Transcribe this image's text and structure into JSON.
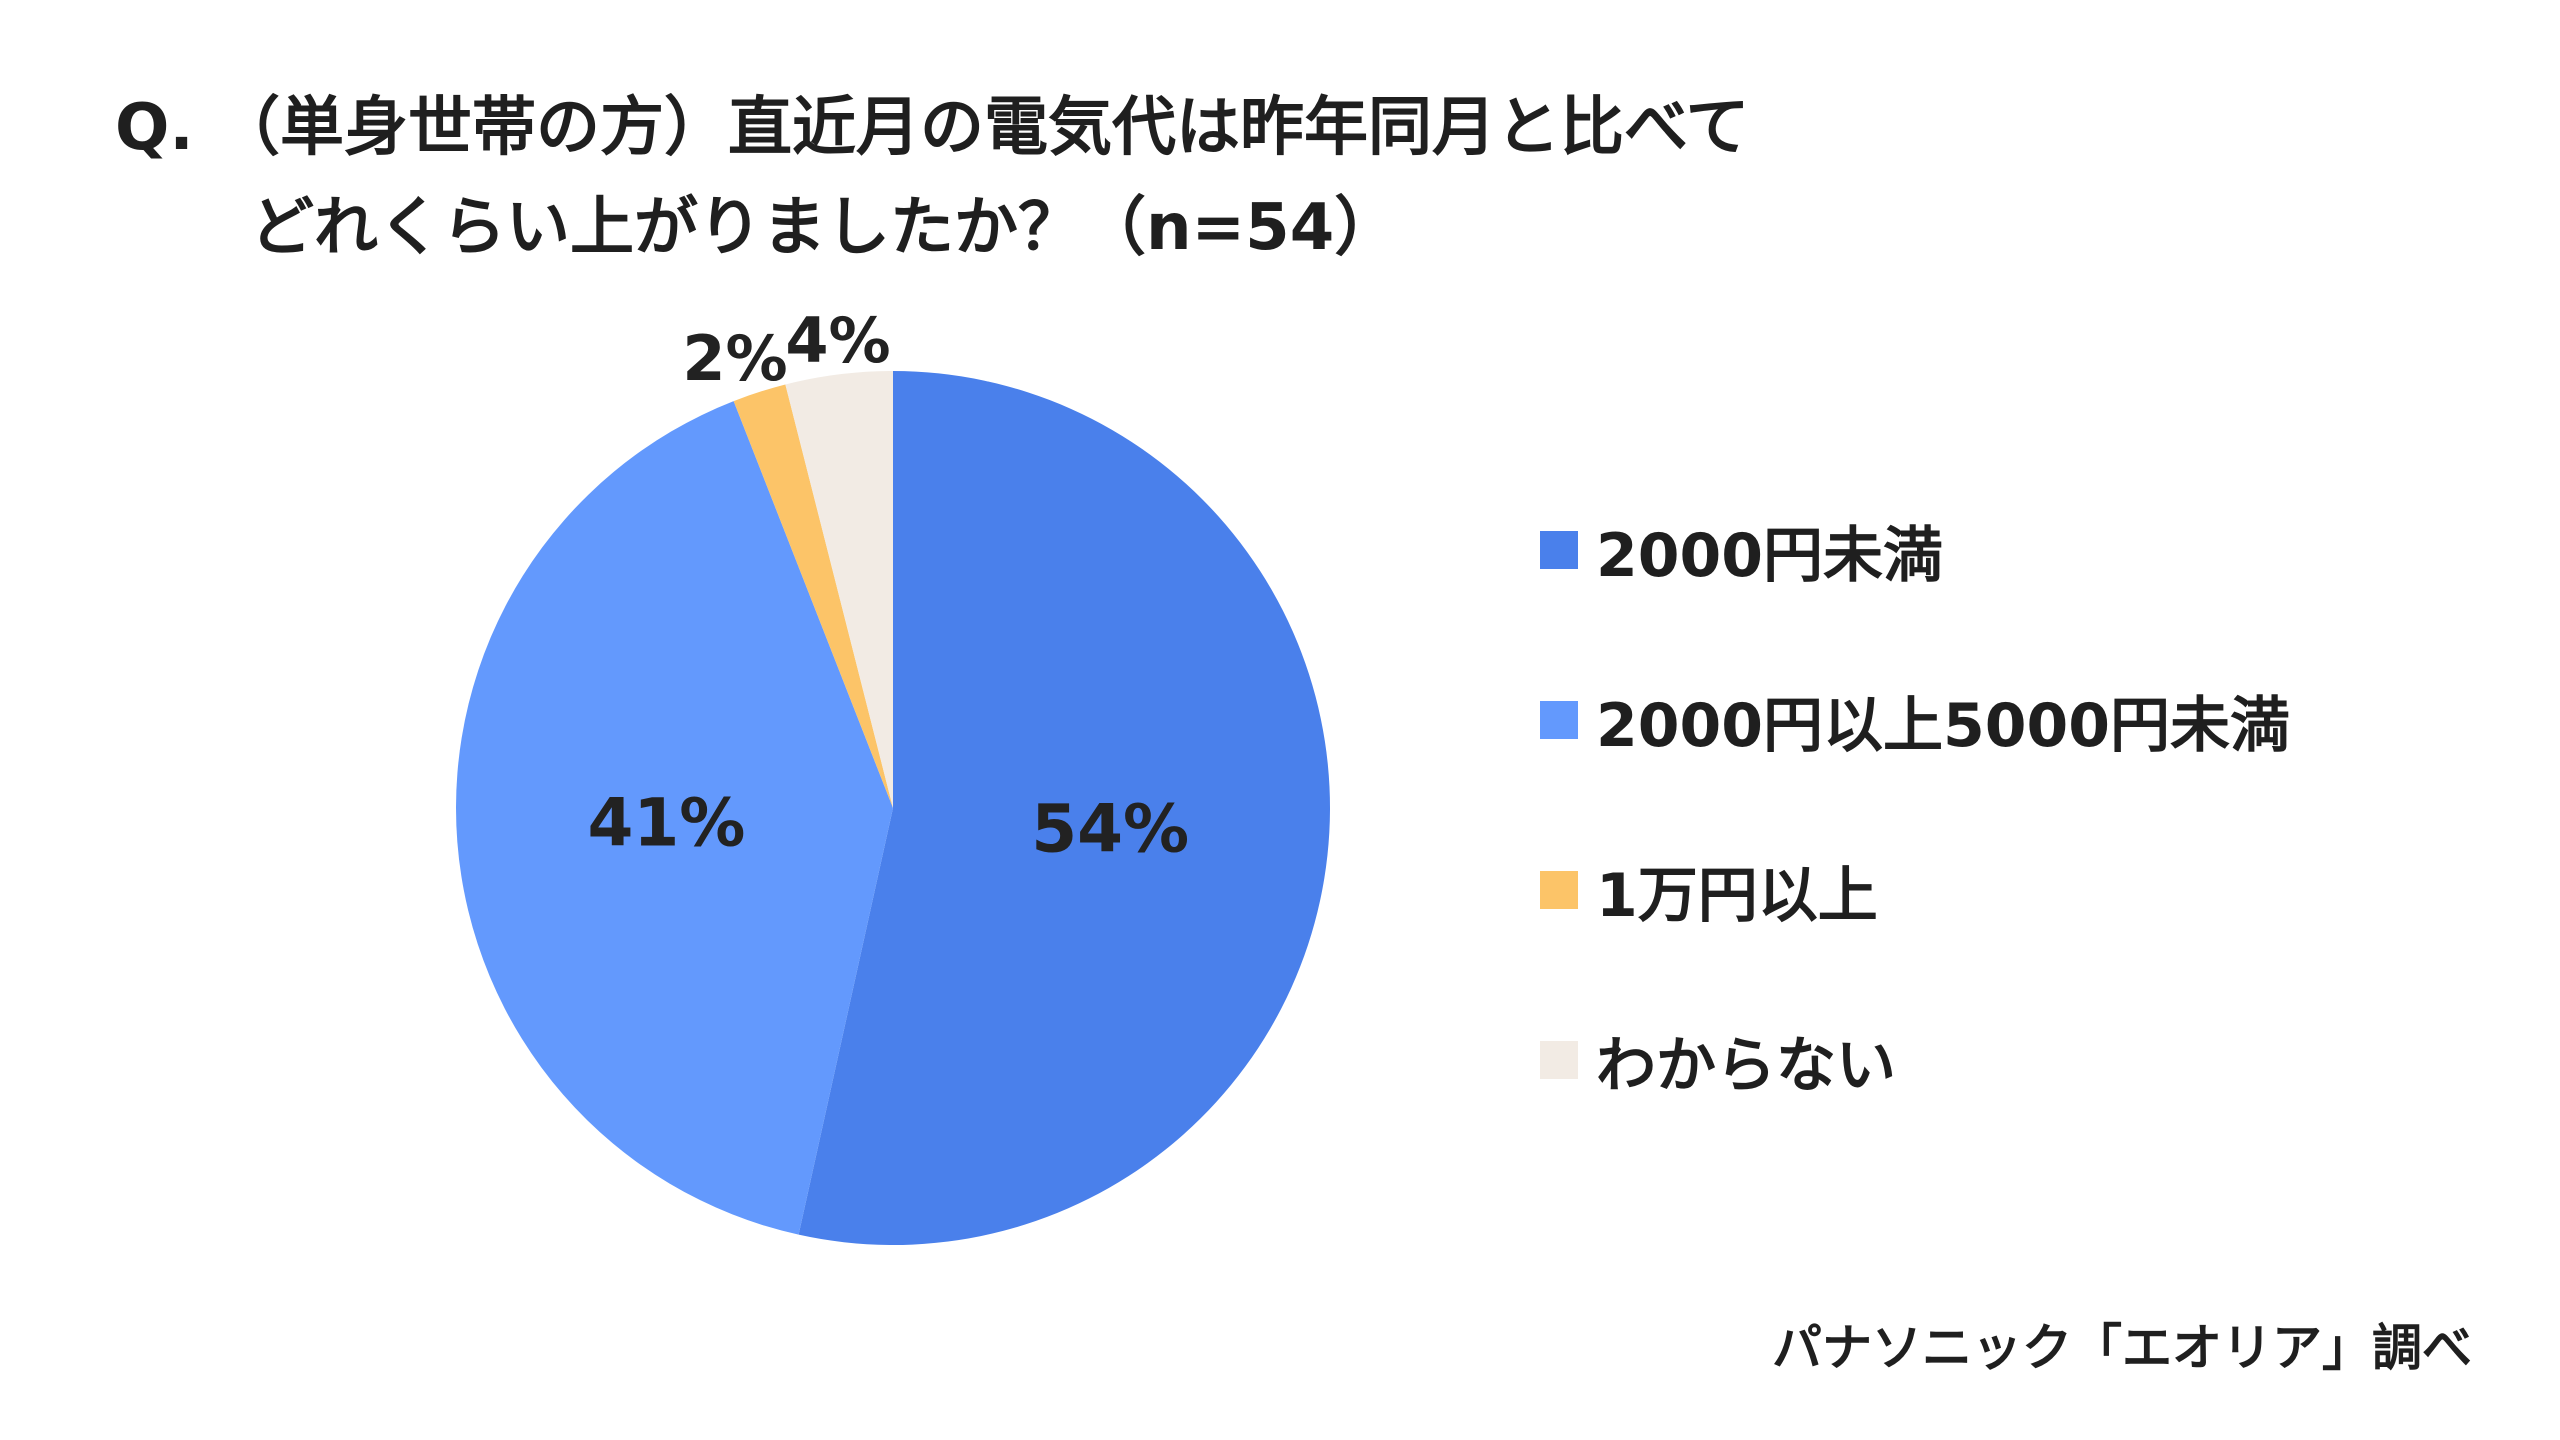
{
  "title": {
    "line1": "Q. （単身世帯の方）直近月の電気代は昨年同月と比べて",
    "line2": "どれくらい上がりましたか？（n=54）"
  },
  "chart_data": {
    "type": "pie",
    "categories": [
      "2000円未満",
      "2000円以上5000円未満",
      "1万円以上",
      "わからない"
    ],
    "values": [
      54,
      41,
      2,
      4
    ],
    "labels": [
      "54%",
      "41%",
      "2%",
      "4%"
    ],
    "colors": [
      "#4a80eb",
      "#6399fd",
      "#fcc468",
      "#f2ebe4"
    ],
    "start_angle": "12 o'clock",
    "direction": "clockwise",
    "legend_position": "right"
  },
  "source": "パナソニック「エオリア」調べ"
}
